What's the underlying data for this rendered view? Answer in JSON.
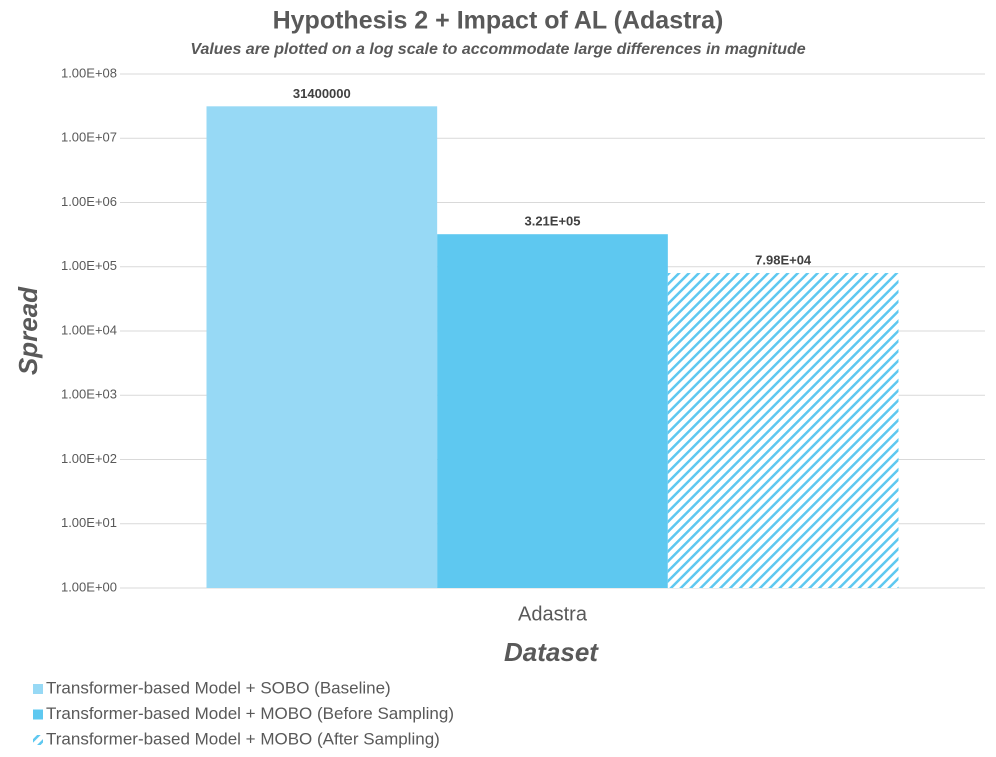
{
  "chart_data": {
    "type": "bar",
    "title": "Hypothesis 2 + Impact of AL (Adastra)",
    "subtitle": "Values are plotted on a log scale to accommodate large differences in magnitude",
    "x_label": "Dataset",
    "y_label": "Spread",
    "categories": [
      "Adastra"
    ],
    "series": [
      {
        "name": "Transformer-based Model + SOBO (Baseline)",
        "color": "#97d9f5",
        "values": [
          31400000
        ]
      },
      {
        "name": "Transformer-based Model + MOBO (Before Sampling)",
        "color": "#5ec8f0",
        "values": [
          321000
        ],
        "value_labels": [
          "3.21E+05"
        ]
      },
      {
        "name": "Transformer-based Model + MOBO (After Sampling)",
        "color": "#5ec8f0",
        "pattern": "hatch",
        "values": [
          79800
        ],
        "value_labels": [
          "7.98E+04"
        ]
      }
    ],
    "log_scale": true,
    "ylim": [
      1,
      100000000
    ],
    "yticks": [
      {
        "value": 1,
        "label": "1.00E+00"
      },
      {
        "value": 10,
        "label": "1.00E+01"
      },
      {
        "value": 100,
        "label": "1.00E+02"
      },
      {
        "value": 1000,
        "label": "1.00E+03"
      },
      {
        "value": 10000,
        "label": "1.00E+04"
      },
      {
        "value": 100000,
        "label": "1.00E+05"
      },
      {
        "value": 1000000,
        "label": "1.00E+06"
      },
      {
        "value": 10000000,
        "label": "1.00E+07"
      },
      {
        "value": 100000000,
        "label": "1.00E+08"
      }
    ],
    "grid": true,
    "legend": "bottom-left"
  }
}
